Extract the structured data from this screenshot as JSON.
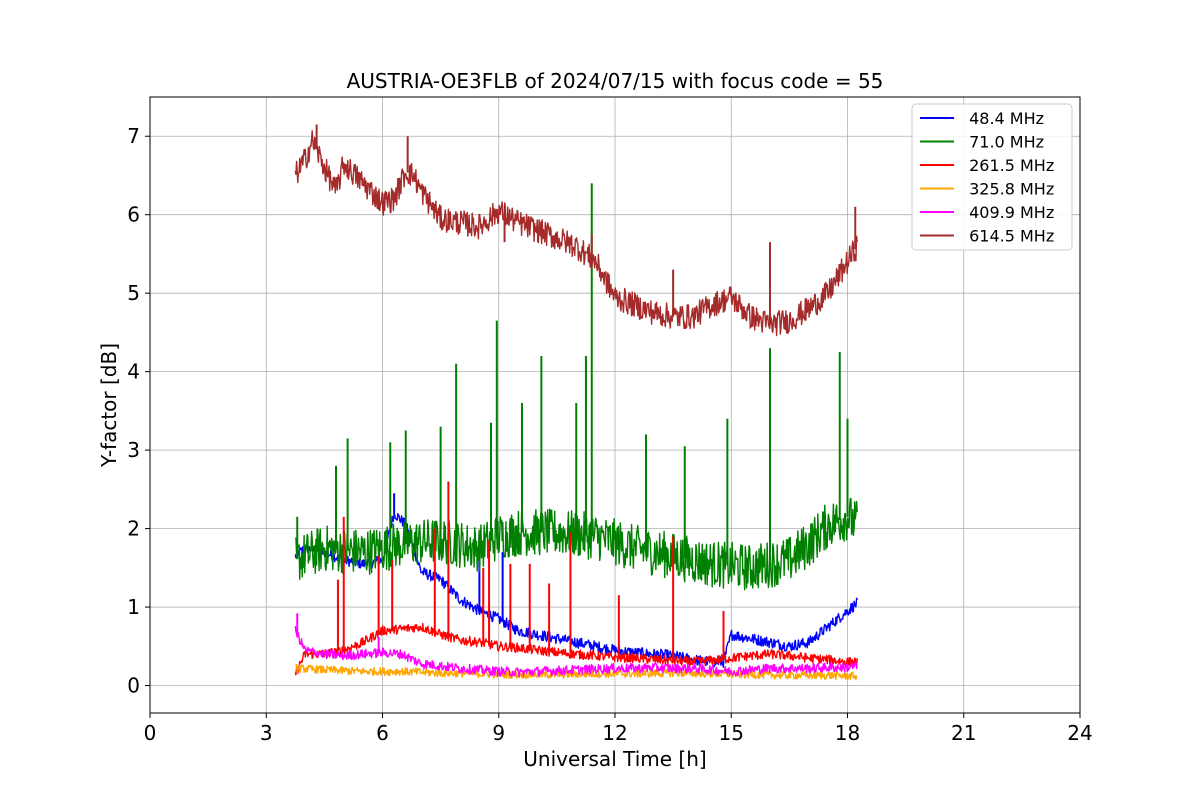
{
  "chart_data": {
    "type": "line",
    "title": "AUSTRIA-OE3FLB of 2024/07/15 with focus code = 55",
    "xlabel": "Universal Time [h]",
    "ylabel": "Y-factor [dB]",
    "xlim": [
      0,
      24
    ],
    "ylim": [
      -0.35,
      7.5
    ],
    "xticks": [
      0,
      3,
      6,
      9,
      12,
      15,
      18,
      21,
      24
    ],
    "yticks": [
      0,
      1,
      2,
      3,
      4,
      5,
      6,
      7
    ],
    "grid": true,
    "legend_position": "top-right",
    "series": [
      {
        "name": " 48.4 MHz",
        "color": "#0000ff",
        "noise": 0.07,
        "x": [
          3.75,
          4.0,
          4.5,
          5.0,
          5.5,
          6.0,
          6.3,
          6.6,
          7.0,
          7.5,
          8.0,
          8.5,
          9.0,
          9.5,
          10.0,
          10.5,
          11.0,
          11.5,
          12.0,
          12.5,
          13.0,
          13.5,
          14.0,
          14.5,
          14.8,
          15.0,
          15.5,
          16.0,
          16.5,
          17.0,
          17.5,
          18.0,
          18.25
        ],
        "y": [
          1.65,
          1.75,
          1.7,
          1.6,
          1.55,
          1.6,
          2.2,
          2.05,
          1.45,
          1.35,
          1.1,
          0.95,
          0.85,
          0.7,
          0.65,
          0.6,
          0.55,
          0.5,
          0.45,
          0.42,
          0.4,
          0.38,
          0.33,
          0.3,
          0.3,
          0.65,
          0.6,
          0.55,
          0.5,
          0.55,
          0.75,
          0.95,
          1.05
        ],
        "spikes": [
          [
            6.3,
            2.45
          ],
          [
            8.5,
            1.9
          ],
          [
            9.1,
            1.7
          ]
        ]
      },
      {
        "name": " 71.0 MHz",
        "color": "#008000",
        "noise": 0.3,
        "x": [
          3.75,
          4.5,
          5.5,
          6.5,
          7.5,
          8.5,
          9.0,
          9.5,
          10.5,
          11.5,
          12.5,
          13.5,
          14.5,
          15.5,
          16.5,
          17.0,
          17.5,
          18.0,
          18.25
        ],
        "y": [
          1.6,
          1.75,
          1.7,
          1.8,
          1.85,
          1.75,
          1.9,
          1.95,
          1.95,
          1.9,
          1.75,
          1.65,
          1.55,
          1.5,
          1.6,
          1.8,
          2.05,
          2.15,
          2.05
        ],
        "spikes": [
          [
            3.8,
            2.15
          ],
          [
            4.8,
            2.8
          ],
          [
            5.1,
            3.15
          ],
          [
            6.2,
            3.1
          ],
          [
            6.6,
            3.25
          ],
          [
            7.5,
            3.3
          ],
          [
            7.9,
            4.1
          ],
          [
            8.8,
            3.35
          ],
          [
            8.95,
            4.65
          ],
          [
            9.6,
            3.6
          ],
          [
            10.1,
            4.2
          ],
          [
            11.0,
            3.6
          ],
          [
            11.25,
            4.2
          ],
          [
            11.4,
            6.4
          ],
          [
            12.8,
            3.2
          ],
          [
            13.8,
            3.05
          ],
          [
            14.9,
            3.4
          ],
          [
            16.0,
            4.3
          ],
          [
            17.8,
            4.25
          ],
          [
            18.0,
            3.4
          ]
        ]
      },
      {
        "name": " 261.5 MHz",
        "color": "#ff0000",
        "noise": 0.06,
        "x": [
          3.75,
          4.0,
          4.5,
          5.0,
          5.5,
          6.0,
          6.5,
          7.0,
          7.5,
          8.0,
          8.5,
          9.0,
          9.5,
          10.0,
          10.5,
          11.0,
          11.5,
          12.0,
          12.5,
          13.0,
          13.5,
          14.0,
          14.5,
          15.0,
          15.5,
          16.0,
          16.5,
          17.0,
          17.5,
          18.0,
          18.25
        ],
        "y": [
          0.15,
          0.4,
          0.4,
          0.45,
          0.55,
          0.7,
          0.72,
          0.75,
          0.65,
          0.58,
          0.55,
          0.5,
          0.48,
          0.45,
          0.42,
          0.4,
          0.38,
          0.36,
          0.35,
          0.33,
          0.32,
          0.3,
          0.32,
          0.35,
          0.38,
          0.4,
          0.38,
          0.35,
          0.33,
          0.3,
          0.3
        ],
        "spikes": [
          [
            4.85,
            1.35
          ],
          [
            5.0,
            2.15
          ],
          [
            5.9,
            1.65
          ],
          [
            6.25,
            1.6
          ],
          [
            7.35,
            2.0
          ],
          [
            7.7,
            2.6
          ],
          [
            8.6,
            1.5
          ],
          [
            8.75,
            1.85
          ],
          [
            9.3,
            1.55
          ],
          [
            9.8,
            1.55
          ],
          [
            10.3,
            1.3
          ],
          [
            10.85,
            1.95
          ],
          [
            12.1,
            1.15
          ],
          [
            13.5,
            1.9
          ],
          [
            14.8,
            0.95
          ]
        ]
      },
      {
        "name": " 325.8 MHz",
        "color": "#ffa500",
        "noise": 0.05,
        "x": [
          3.75,
          4.5,
          5.5,
          6.5,
          7.5,
          8.5,
          9.5,
          10.5,
          11.5,
          12.5,
          13.5,
          14.5,
          15.5,
          16.5,
          17.5,
          18.25
        ],
        "y": [
          0.22,
          0.2,
          0.18,
          0.18,
          0.16,
          0.15,
          0.14,
          0.14,
          0.15,
          0.15,
          0.16,
          0.15,
          0.14,
          0.13,
          0.13,
          0.12
        ],
        "spikes": []
      },
      {
        "name": " 409.9 MHz",
        "color": "#ff00ff",
        "noise": 0.06,
        "x": [
          3.75,
          4.0,
          4.5,
          5.0,
          5.5,
          6.0,
          6.5,
          7.0,
          7.5,
          8.0,
          8.5,
          9.0,
          9.5,
          10.0,
          10.5,
          11.0,
          11.5,
          12.0,
          12.5,
          13.0,
          13.5,
          14.0,
          14.5,
          15.0,
          15.5,
          16.0,
          16.5,
          17.0,
          17.5,
          18.0,
          18.25
        ],
        "y": [
          0.7,
          0.45,
          0.4,
          0.38,
          0.4,
          0.42,
          0.4,
          0.28,
          0.25,
          0.22,
          0.2,
          0.18,
          0.17,
          0.18,
          0.19,
          0.2,
          0.21,
          0.22,
          0.22,
          0.23,
          0.22,
          0.22,
          0.2,
          0.18,
          0.2,
          0.22,
          0.22,
          0.22,
          0.23,
          0.23,
          0.25
        ],
        "spikes": [
          [
            3.8,
            0.92
          ],
          [
            5.9,
            0.62
          ]
        ]
      },
      {
        "name": " 614.5 MHz",
        "color": "#a52a2a",
        "noise": 0.16,
        "x": [
          3.75,
          4.0,
          4.2,
          4.5,
          4.8,
          5.0,
          5.3,
          5.6,
          6.0,
          6.3,
          6.6,
          6.8,
          7.0,
          7.5,
          8.0,
          8.5,
          9.0,
          9.5,
          10.0,
          10.5,
          11.0,
          11.5,
          12.0,
          12.5,
          13.0,
          13.5,
          14.0,
          14.5,
          15.0,
          15.5,
          16.0,
          16.5,
          17.0,
          17.5,
          18.0,
          18.25
        ],
        "y": [
          6.5,
          6.7,
          6.95,
          6.6,
          6.3,
          6.65,
          6.5,
          6.35,
          6.15,
          6.2,
          6.55,
          6.5,
          6.3,
          5.95,
          5.9,
          5.85,
          6.05,
          5.9,
          5.8,
          5.7,
          5.6,
          5.4,
          4.95,
          4.85,
          4.75,
          4.7,
          4.7,
          4.85,
          4.95,
          4.7,
          4.6,
          4.65,
          4.8,
          5.0,
          5.4,
          5.6
        ],
        "spikes": [
          [
            4.3,
            7.15
          ],
          [
            6.65,
            7.0
          ],
          [
            9.15,
            5.65
          ],
          [
            11.4,
            5.75
          ],
          [
            13.5,
            5.3
          ],
          [
            16.0,
            5.65
          ],
          [
            18.2,
            6.1
          ]
        ]
      }
    ]
  }
}
